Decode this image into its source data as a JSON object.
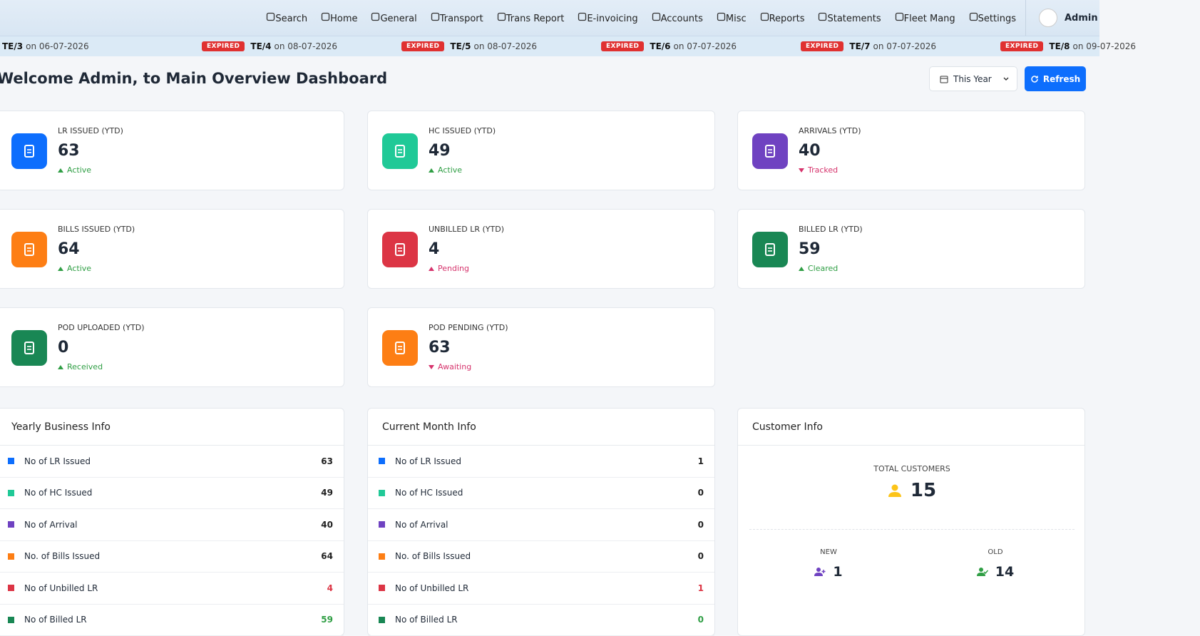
{
  "nav": {
    "items": [
      "Search",
      "Home",
      "General",
      "Transport",
      "Trans Report",
      "E-invoicing",
      "Accounts",
      "Misc",
      "Reports",
      "Statements",
      "Fleet Mang",
      "Settings"
    ],
    "user": "Admin"
  },
  "ticker": [
    {
      "code": "TE/3",
      "date": "on 06-07-2026"
    },
    {
      "badge": "EXPIRED",
      "code": "TE/4",
      "date": "on 08-07-2026"
    },
    {
      "badge": "EXPIRED",
      "code": "TE/5",
      "date": "on 08-07-2026"
    },
    {
      "badge": "EXPIRED",
      "code": "TE/6",
      "date": "on 07-07-2026"
    },
    {
      "badge": "EXPIRED",
      "code": "TE/7",
      "date": "on 07-07-2026"
    },
    {
      "badge": "EXPIRED",
      "code": "TE/8",
      "date": "on 09-07-2026"
    }
  ],
  "header": {
    "title": "Welcome Admin, to Main Overview Dashboard",
    "period": "This Year",
    "refresh": "Refresh"
  },
  "cards": [
    {
      "label": "LR ISSUED (YTD)",
      "value": 63,
      "status": "Active",
      "trend": "up",
      "color": "#0d6efd",
      "status_color": "#2f9e44"
    },
    {
      "label": "HC ISSUED (YTD)",
      "value": 49,
      "status": "Active",
      "trend": "up",
      "color": "#20c997",
      "status_color": "#2f9e44"
    },
    {
      "label": "ARRIVALS (YTD)",
      "value": 40,
      "status": "Tracked",
      "trend": "down",
      "color": "#6f42c1",
      "status_color": "#d6336c"
    },
    {
      "label": "BILLS ISSUED (YTD)",
      "value": 64,
      "status": "Active",
      "trend": "up",
      "color": "#fd7e14",
      "status_color": "#2f9e44"
    },
    {
      "label": "UNBILLED LR (YTD)",
      "value": 4,
      "status": "Pending",
      "trend": "up",
      "color": "#dc3545",
      "status_color": "#d6336c"
    },
    {
      "label": "BILLED LR (YTD)",
      "value": 59,
      "status": "Cleared",
      "trend": "up",
      "color": "#198754",
      "status_color": "#2f9e44"
    },
    {
      "label": "POD UPLOADED (YTD)",
      "value": 0,
      "status": "Received",
      "trend": "up",
      "color": "#198754",
      "status_color": "#2f9e44"
    },
    {
      "label": "POD PENDING (YTD)",
      "value": 63,
      "status": "Awaiting",
      "trend": "down",
      "color": "#fd7e14",
      "status_color": "#d6336c"
    }
  ],
  "panels": [
    {
      "title": "Yearly Business Info",
      "rows": [
        {
          "label": "No of LR Issued",
          "value": 63,
          "color": "#0d6efd"
        },
        {
          "label": "No of HC Issued",
          "value": 49,
          "color": "#20c997"
        },
        {
          "label": "No of Arrival",
          "value": 40,
          "color": "#6f42c1"
        },
        {
          "label": "No. of Bills Issued",
          "value": 64,
          "color": "#fd7e14"
        },
        {
          "label": "No of Unbilled LR",
          "value": 4,
          "color": "#dc3545",
          "value_color": "#dc3545"
        },
        {
          "label": "No of Billed LR",
          "value": 59,
          "color": "#198754",
          "value_color": "#2f9e44"
        }
      ]
    },
    {
      "title": "Current Month Info",
      "rows": [
        {
          "label": "No of LR Issued",
          "value": 1,
          "color": "#0d6efd"
        },
        {
          "label": "No of HC Issued",
          "value": 0,
          "color": "#20c997"
        },
        {
          "label": "No of Arrival",
          "value": 0,
          "color": "#6f42c1"
        },
        {
          "label": "No. of Bills Issued",
          "value": 0,
          "color": "#fd7e14"
        },
        {
          "label": "No of Unbilled LR",
          "value": 1,
          "color": "#dc3545",
          "value_color": "#dc3545"
        },
        {
          "label": "No of Billed LR",
          "value": 0,
          "color": "#198754",
          "value_color": "#2f9e44"
        }
      ]
    }
  ],
  "customers": {
    "title": "Customer Info",
    "total_label": "TOTAL CUSTOMERS",
    "total": 15,
    "new_label": "NEW",
    "new": 1,
    "old_label": "OLD",
    "old": 14
  }
}
